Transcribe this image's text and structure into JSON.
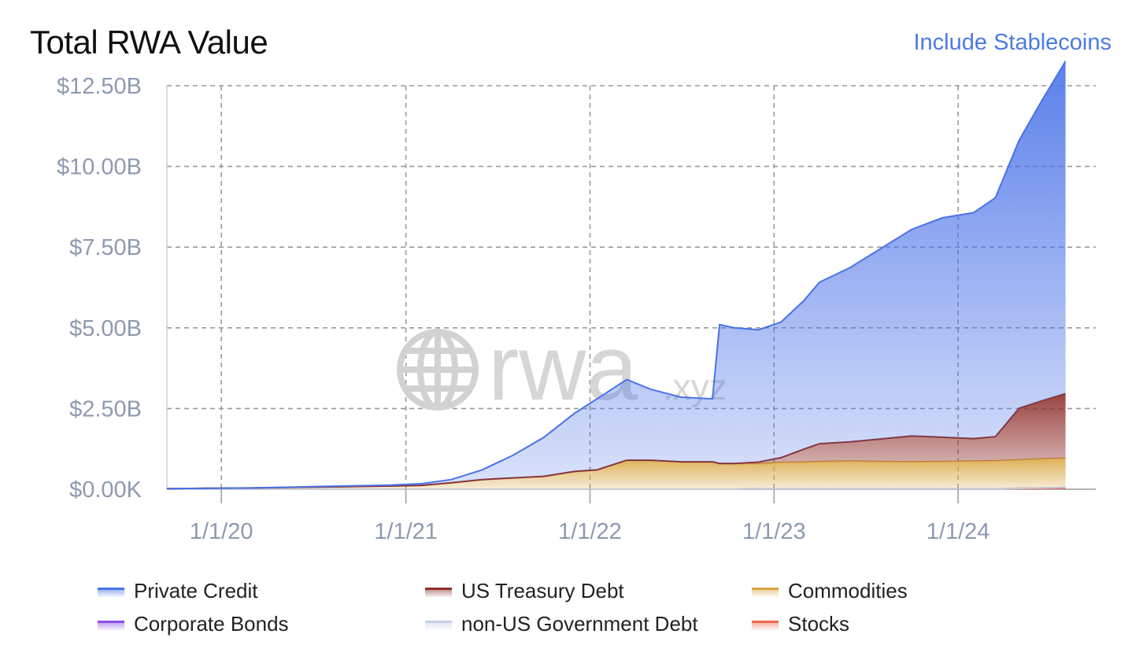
{
  "header": {
    "title": "Total RWA Value",
    "toggle_label": "Include Stablecoins"
  },
  "colors": {
    "accent_link": "#4a7be3",
    "axis_text": "#8d9ab0",
    "grid": "#9a9a9a",
    "watermark": "#cfcfcf"
  },
  "watermark": {
    "text": "rwa",
    "suffix": ".xyz",
    "icon": "globe-icon"
  },
  "chart_data": {
    "type": "area",
    "stacked": true,
    "title": "Total RWA Value",
    "xlabel": "",
    "ylabel": "",
    "ylim": [
      0,
      12.5
    ],
    "y_unit": "billion USD",
    "y_ticks": [
      0,
      2.5,
      5,
      7.5,
      10,
      12.5
    ],
    "y_tick_labels": [
      "$0.00K",
      "$2.50B",
      "$5.00B",
      "$7.50B",
      "$10.00B",
      "$12.50B"
    ],
    "x_tick_labels": [
      "1/1/20",
      "1/1/21",
      "1/1/22",
      "1/1/23",
      "1/1/24"
    ],
    "x_ticks": [
      "2020-01-01",
      "2021-01-01",
      "2022-01-01",
      "2023-01-01",
      "2024-01-01"
    ],
    "xlim": [
      "2019-09-15",
      "2024-09-30"
    ],
    "grid": true,
    "legend_position": "bottom",
    "x": [
      "2019-09-15",
      "2019-12-01",
      "2020-03-01",
      "2020-06-01",
      "2020-09-01",
      "2020-12-01",
      "2021-02-01",
      "2021-04-01",
      "2021-06-01",
      "2021-08-01",
      "2021-10-01",
      "2021-12-01",
      "2022-01-15",
      "2022-03-15",
      "2022-05-01",
      "2022-07-01",
      "2022-09-01",
      "2022-09-15",
      "2022-10-15",
      "2022-12-01",
      "2023-01-15",
      "2023-03-01",
      "2023-04-01",
      "2023-06-01",
      "2023-08-01",
      "2023-10-01",
      "2023-12-01",
      "2024-02-01",
      "2024-03-15",
      "2024-05-01",
      "2024-06-15",
      "2024-08-01"
    ],
    "series": [
      {
        "name": "Stocks",
        "color": "#ef6b4f",
        "values": [
          0,
          0,
          0,
          0,
          0,
          0,
          0,
          0,
          0,
          0,
          0,
          0,
          0,
          0,
          0,
          0,
          0,
          0,
          0,
          0.01,
          0.01,
          0.01,
          0.01,
          0.01,
          0.01,
          0.01,
          0.01,
          0.01,
          0.01,
          0.02,
          0.02,
          0.03
        ]
      },
      {
        "name": "Corporate Bonds",
        "color": "#8a4fe0",
        "values": [
          0,
          0,
          0,
          0,
          0,
          0,
          0,
          0,
          0,
          0,
          0,
          0,
          0,
          0,
          0,
          0,
          0,
          0,
          0,
          0,
          0,
          0,
          0,
          0,
          0,
          0,
          0,
          0,
          0,
          0.01,
          0.02,
          0.02
        ]
      },
      {
        "name": "non-US Government Debt",
        "color": "#c5d0e6",
        "values": [
          0,
          0,
          0,
          0,
          0,
          0,
          0,
          0,
          0,
          0,
          0,
          0,
          0,
          0,
          0,
          0,
          0,
          0,
          0,
          0,
          0,
          0,
          0,
          0,
          0,
          0,
          0,
          0,
          0,
          0,
          0,
          0.01
        ]
      },
      {
        "name": "Commodities",
        "color": "#d9a743",
        "values": [
          0.02,
          0.03,
          0.04,
          0.06,
          0.08,
          0.1,
          0.12,
          0.2,
          0.3,
          0.35,
          0.4,
          0.55,
          0.6,
          0.9,
          0.9,
          0.85,
          0.85,
          0.8,
          0.8,
          0.78,
          0.82,
          0.83,
          0.85,
          0.86,
          0.85,
          0.84,
          0.85,
          0.86,
          0.87,
          0.88,
          0.9,
          0.9
        ]
      },
      {
        "name": "US Treasury Debt",
        "color": "#8e2f2c",
        "values": [
          0,
          0,
          0,
          0,
          0,
          0,
          0,
          0,
          0,
          0,
          0,
          0,
          0,
          0,
          0,
          0,
          0,
          0,
          0,
          0.05,
          0.15,
          0.4,
          0.55,
          0.6,
          0.7,
          0.8,
          0.75,
          0.7,
          0.75,
          1.6,
          1.8,
          2.0
        ]
      },
      {
        "name": "Private Credit",
        "color": "#4a72e8",
        "values": [
          0,
          0,
          0,
          0.01,
          0.02,
          0.03,
          0.05,
          0.1,
          0.3,
          0.7,
          1.2,
          1.8,
          2.2,
          2.5,
          2.2,
          2.0,
          1.95,
          4.3,
          4.2,
          4.1,
          4.2,
          4.6,
          5.0,
          5.4,
          5.9,
          6.4,
          6.8,
          7.0,
          7.4,
          8.3,
          9.3,
          10.3
        ]
      }
    ]
  },
  "legend": {
    "items": [
      {
        "label": "Private Credit",
        "color": "#4a72e8"
      },
      {
        "label": "US Treasury Debt",
        "color": "#8e2f2c"
      },
      {
        "label": "Commodities",
        "color": "#d9a743"
      },
      {
        "label": "Corporate Bonds",
        "color": "#8a4fe0"
      },
      {
        "label": "non-US Government Debt",
        "color": "#c5d0e6"
      },
      {
        "label": "Stocks",
        "color": "#ef6b4f"
      }
    ]
  }
}
